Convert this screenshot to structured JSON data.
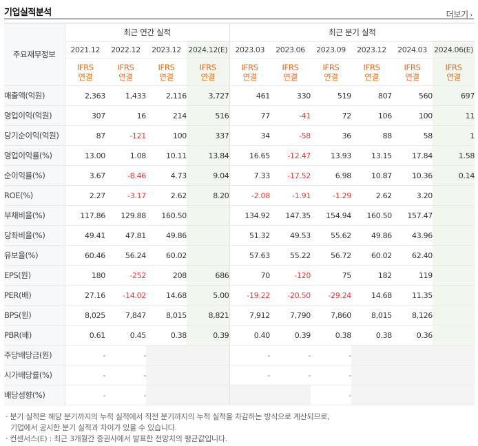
{
  "section_title": "기업실적분석",
  "more_link": "더보기",
  "header": {
    "row_label": "주요재무정보",
    "annual_title": "최근 연간 실적",
    "quarter_title": "최근 분기 실적",
    "ifrs_line1": "IFRS",
    "ifrs_line2": "연결",
    "columns": [
      "2021.12",
      "2022.12",
      "2023.12",
      "2024.12(E)",
      "2023.03",
      "2023.06",
      "2023.09",
      "2023.12",
      "2024.03",
      "2024.06(E)"
    ]
  },
  "rows": [
    {
      "label": "매출액(억원)",
      "values": [
        "2,363",
        "1,433",
        "2,116",
        "3,727",
        "461",
        "330",
        "519",
        "807",
        "560",
        "697"
      ]
    },
    {
      "label": "영업이익(억원)",
      "values": [
        "307",
        "16",
        "214",
        "516",
        "77",
        "-41",
        "72",
        "106",
        "100",
        "11"
      ]
    },
    {
      "label": "당기순이익(억원)",
      "values": [
        "87",
        "-121",
        "100",
        "337",
        "34",
        "-58",
        "36",
        "88",
        "58",
        "1"
      ]
    },
    {
      "label": "영업이익률(%)",
      "values": [
        "13.00",
        "1.08",
        "10.11",
        "13.84",
        "16.65",
        "-12.47",
        "13.93",
        "13.15",
        "17.84",
        "1.58"
      ]
    },
    {
      "label": "순이익률(%)",
      "values": [
        "3.67",
        "-8.46",
        "4.73",
        "9.04",
        "7.33",
        "-17.52",
        "6.98",
        "10.87",
        "10.36",
        "0.14"
      ]
    },
    {
      "label": "ROE(%)",
      "values": [
        "2.27",
        "-3.17",
        "2.62",
        "8.20",
        "-2.08",
        "-1.91",
        "-1.29",
        "2.62",
        "3.20",
        ""
      ]
    },
    {
      "label": "부채비율(%)",
      "values": [
        "117.86",
        "129.88",
        "160.50",
        "",
        "134.92",
        "147.35",
        "154.94",
        "160.50",
        "157.47",
        ""
      ]
    },
    {
      "label": "당좌비율(%)",
      "values": [
        "49.41",
        "47.81",
        "49.86",
        "",
        "51.32",
        "49.53",
        "55.62",
        "49.86",
        "43.96",
        ""
      ]
    },
    {
      "label": "유보율(%)",
      "values": [
        "60.46",
        "56.24",
        "60.02",
        "",
        "57.63",
        "55.22",
        "56.72",
        "60.02",
        "62.40",
        ""
      ]
    },
    {
      "label": "EPS(원)",
      "values": [
        "180",
        "-252",
        "208",
        "686",
        "70",
        "-120",
        "75",
        "182",
        "119",
        ""
      ]
    },
    {
      "label": "PER(배)",
      "values": [
        "27.16",
        "-14.02",
        "14.68",
        "5.00",
        "-19.22",
        "-20.50",
        "-29.24",
        "14.68",
        "11.35",
        ""
      ]
    },
    {
      "label": "BPS(원)",
      "values": [
        "8,025",
        "7,847",
        "8,015",
        "8,821",
        "7,912",
        "7,790",
        "7,860",
        "8,015",
        "8,126",
        ""
      ]
    },
    {
      "label": "PBR(배)",
      "values": [
        "0.61",
        "0.45",
        "0.38",
        "0.39",
        "0.40",
        "0.39",
        "0.38",
        "0.38",
        "0.36",
        ""
      ]
    },
    {
      "label": "주당배당금(원)",
      "values": [
        "-",
        "-",
        "",
        "",
        "-",
        "-",
        "-",
        "",
        "",
        ""
      ]
    },
    {
      "label": "시가배당률(%)",
      "values": [
        "-",
        "-",
        "",
        "",
        "-",
        "-",
        "-",
        "",
        "",
        ""
      ]
    },
    {
      "label": "배당성향(%)",
      "values": [
        "-",
        "-",
        "",
        "",
        "",
        "",
        "-",
        "",
        "",
        ""
      ]
    }
  ],
  "notes": {
    "line1": "분기 실적은 해당 분기까지의 누적 실적에서 직전 분기까지의 누적 실적을 차감하는 방식으로 계산되므로,",
    "line2": "기업에서 공시한 분기 실적과 차이가 있을 수 있습니다.",
    "line3_prefix": "컨센서스(",
    "line3_e": "E",
    "line3_suffix": ") : 최근 3개월간 증권사에서 발표한 전망치의 평균값입니다."
  },
  "colors": {
    "negative": "#e23b3b",
    "ifrs": "#e96a1c",
    "estimate_bg": "#f1f7ee",
    "consensus_e": "#3f8a32"
  }
}
